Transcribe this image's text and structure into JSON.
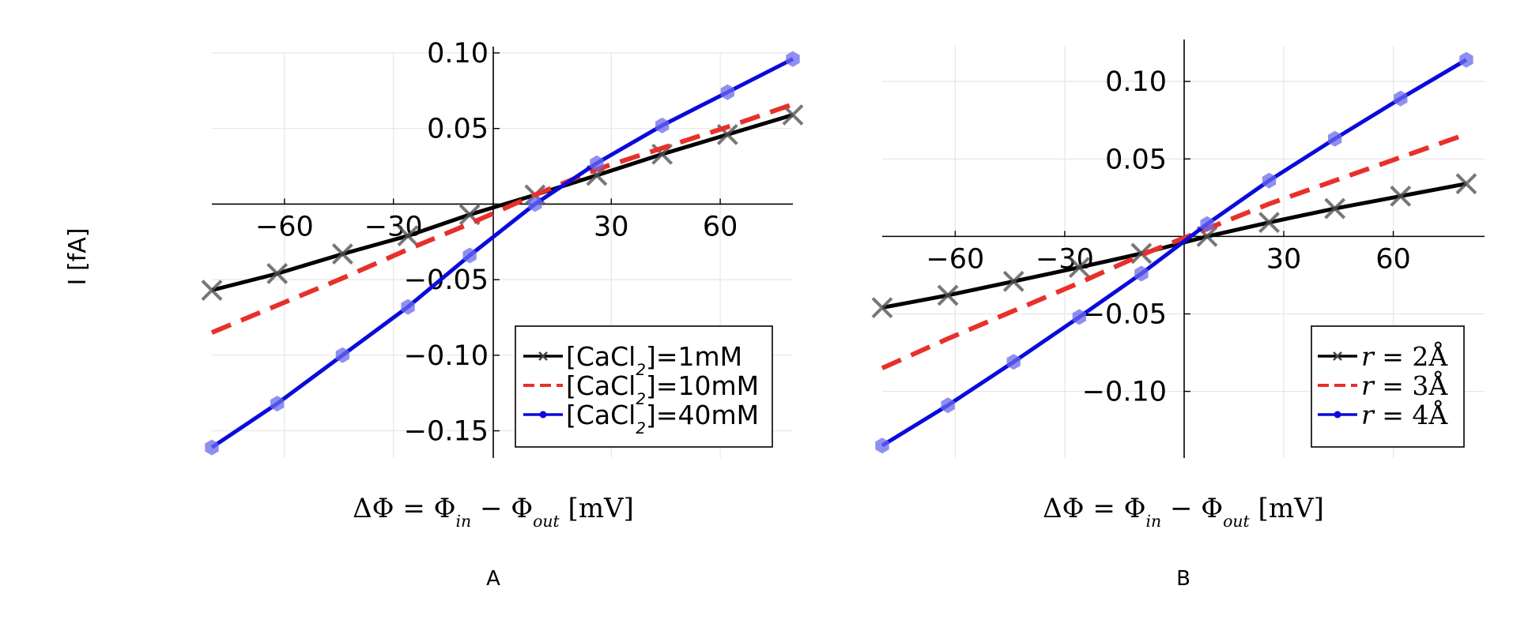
{
  "y_axis_label": "I [fA]",
  "chart_data": [
    {
      "type": "line",
      "panel_label": "A",
      "xlabel_parts": [
        "ΔΦ = Φ",
        "in",
        " − Φ",
        "out",
        " [mV]"
      ],
      "ylabel": "I [fA]",
      "xlim": [
        -80,
        80
      ],
      "ylim": [
        -0.168,
        0.1
      ],
      "xticks": [
        -60,
        -30,
        30,
        60
      ],
      "xtick_labels": [
        "−60",
        "−30",
        "30",
        "60"
      ],
      "yticks": [
        0.1,
        0.05,
        -0.05,
        -0.1,
        -0.15
      ],
      "ytick_labels": [
        "0.10",
        "0.05",
        "−0.05",
        "−0.10",
        "−0.15"
      ],
      "grid": true,
      "legend_position": "bottom-right",
      "x": [
        -80,
        -62,
        -44,
        -26,
        -9,
        9,
        26,
        44,
        62,
        80
      ],
      "series": [
        {
          "legend_parts": [
            "[CaCl",
            "2",
            "]=1mM"
          ],
          "color": "#000000",
          "dash": "solid",
          "marker": "x",
          "values": [
            -0.057,
            -0.046,
            -0.033,
            -0.021,
            -0.007,
            0.006,
            0.019,
            0.033,
            0.046,
            0.059
          ]
        },
        {
          "legend_parts": [
            "[CaCl",
            "2",
            "]=10mM"
          ],
          "color": "#e8302a",
          "dash": "dashed",
          "marker": "none",
          "values": [
            -0.085,
            -0.067,
            -0.049,
            -0.03,
            -0.013,
            0.006,
            0.023,
            0.037,
            0.051,
            0.066
          ]
        },
        {
          "legend_parts": [
            "[CaCl",
            "2",
            "]=40mM"
          ],
          "color": "#0a0adc",
          "dash": "solid",
          "marker": "hexagon",
          "values": [
            -0.161,
            -0.132,
            -0.1,
            -0.068,
            -0.034,
            0.0,
            0.027,
            0.052,
            0.074,
            0.096
          ]
        }
      ]
    },
    {
      "type": "line",
      "panel_label": "B",
      "xlabel_parts": [
        "ΔΦ = Φ",
        "in",
        " − Φ",
        "out",
        " [mV]"
      ],
      "xlim": [
        -80,
        85
      ],
      "ylim": [
        -0.143,
        0.123
      ],
      "xticks": [
        -60,
        -30,
        30,
        60
      ],
      "xtick_labels": [
        "−60",
        "−30",
        "30",
        "60"
      ],
      "yticks": [
        0.1,
        0.05,
        -0.05,
        -0.1
      ],
      "ytick_labels": [
        "0.10",
        "0.05",
        "−0.05",
        "−0.10"
      ],
      "grid": true,
      "legend_position": "bottom-right",
      "x": [
        -80,
        -62,
        -44,
        -26,
        -9,
        9,
        26,
        44,
        62,
        80
      ],
      "series": [
        {
          "legend_parts": [
            "r",
            " = 2Å"
          ],
          "color": "#000000",
          "dash": "solid",
          "marker": "x",
          "values": [
            -0.046,
            -0.038,
            -0.029,
            -0.02,
            -0.011,
            0.0,
            0.009,
            0.018,
            0.026,
            0.034
          ]
        },
        {
          "legend_parts": [
            "r",
            " = 3Å"
          ],
          "color": "#e8302a",
          "dash": "dashed",
          "marker": "none",
          "values": [
            -0.085,
            -0.066,
            -0.048,
            -0.03,
            -0.012,
            0.005,
            0.021,
            0.036,
            0.051,
            0.066
          ]
        },
        {
          "legend_parts": [
            "r",
            " = 4Å"
          ],
          "color": "#0a0adc",
          "dash": "solid",
          "marker": "hexagon",
          "values": [
            -0.135,
            -0.109,
            -0.081,
            -0.052,
            -0.024,
            0.008,
            0.036,
            0.063,
            0.089,
            0.114
          ]
        }
      ]
    }
  ]
}
